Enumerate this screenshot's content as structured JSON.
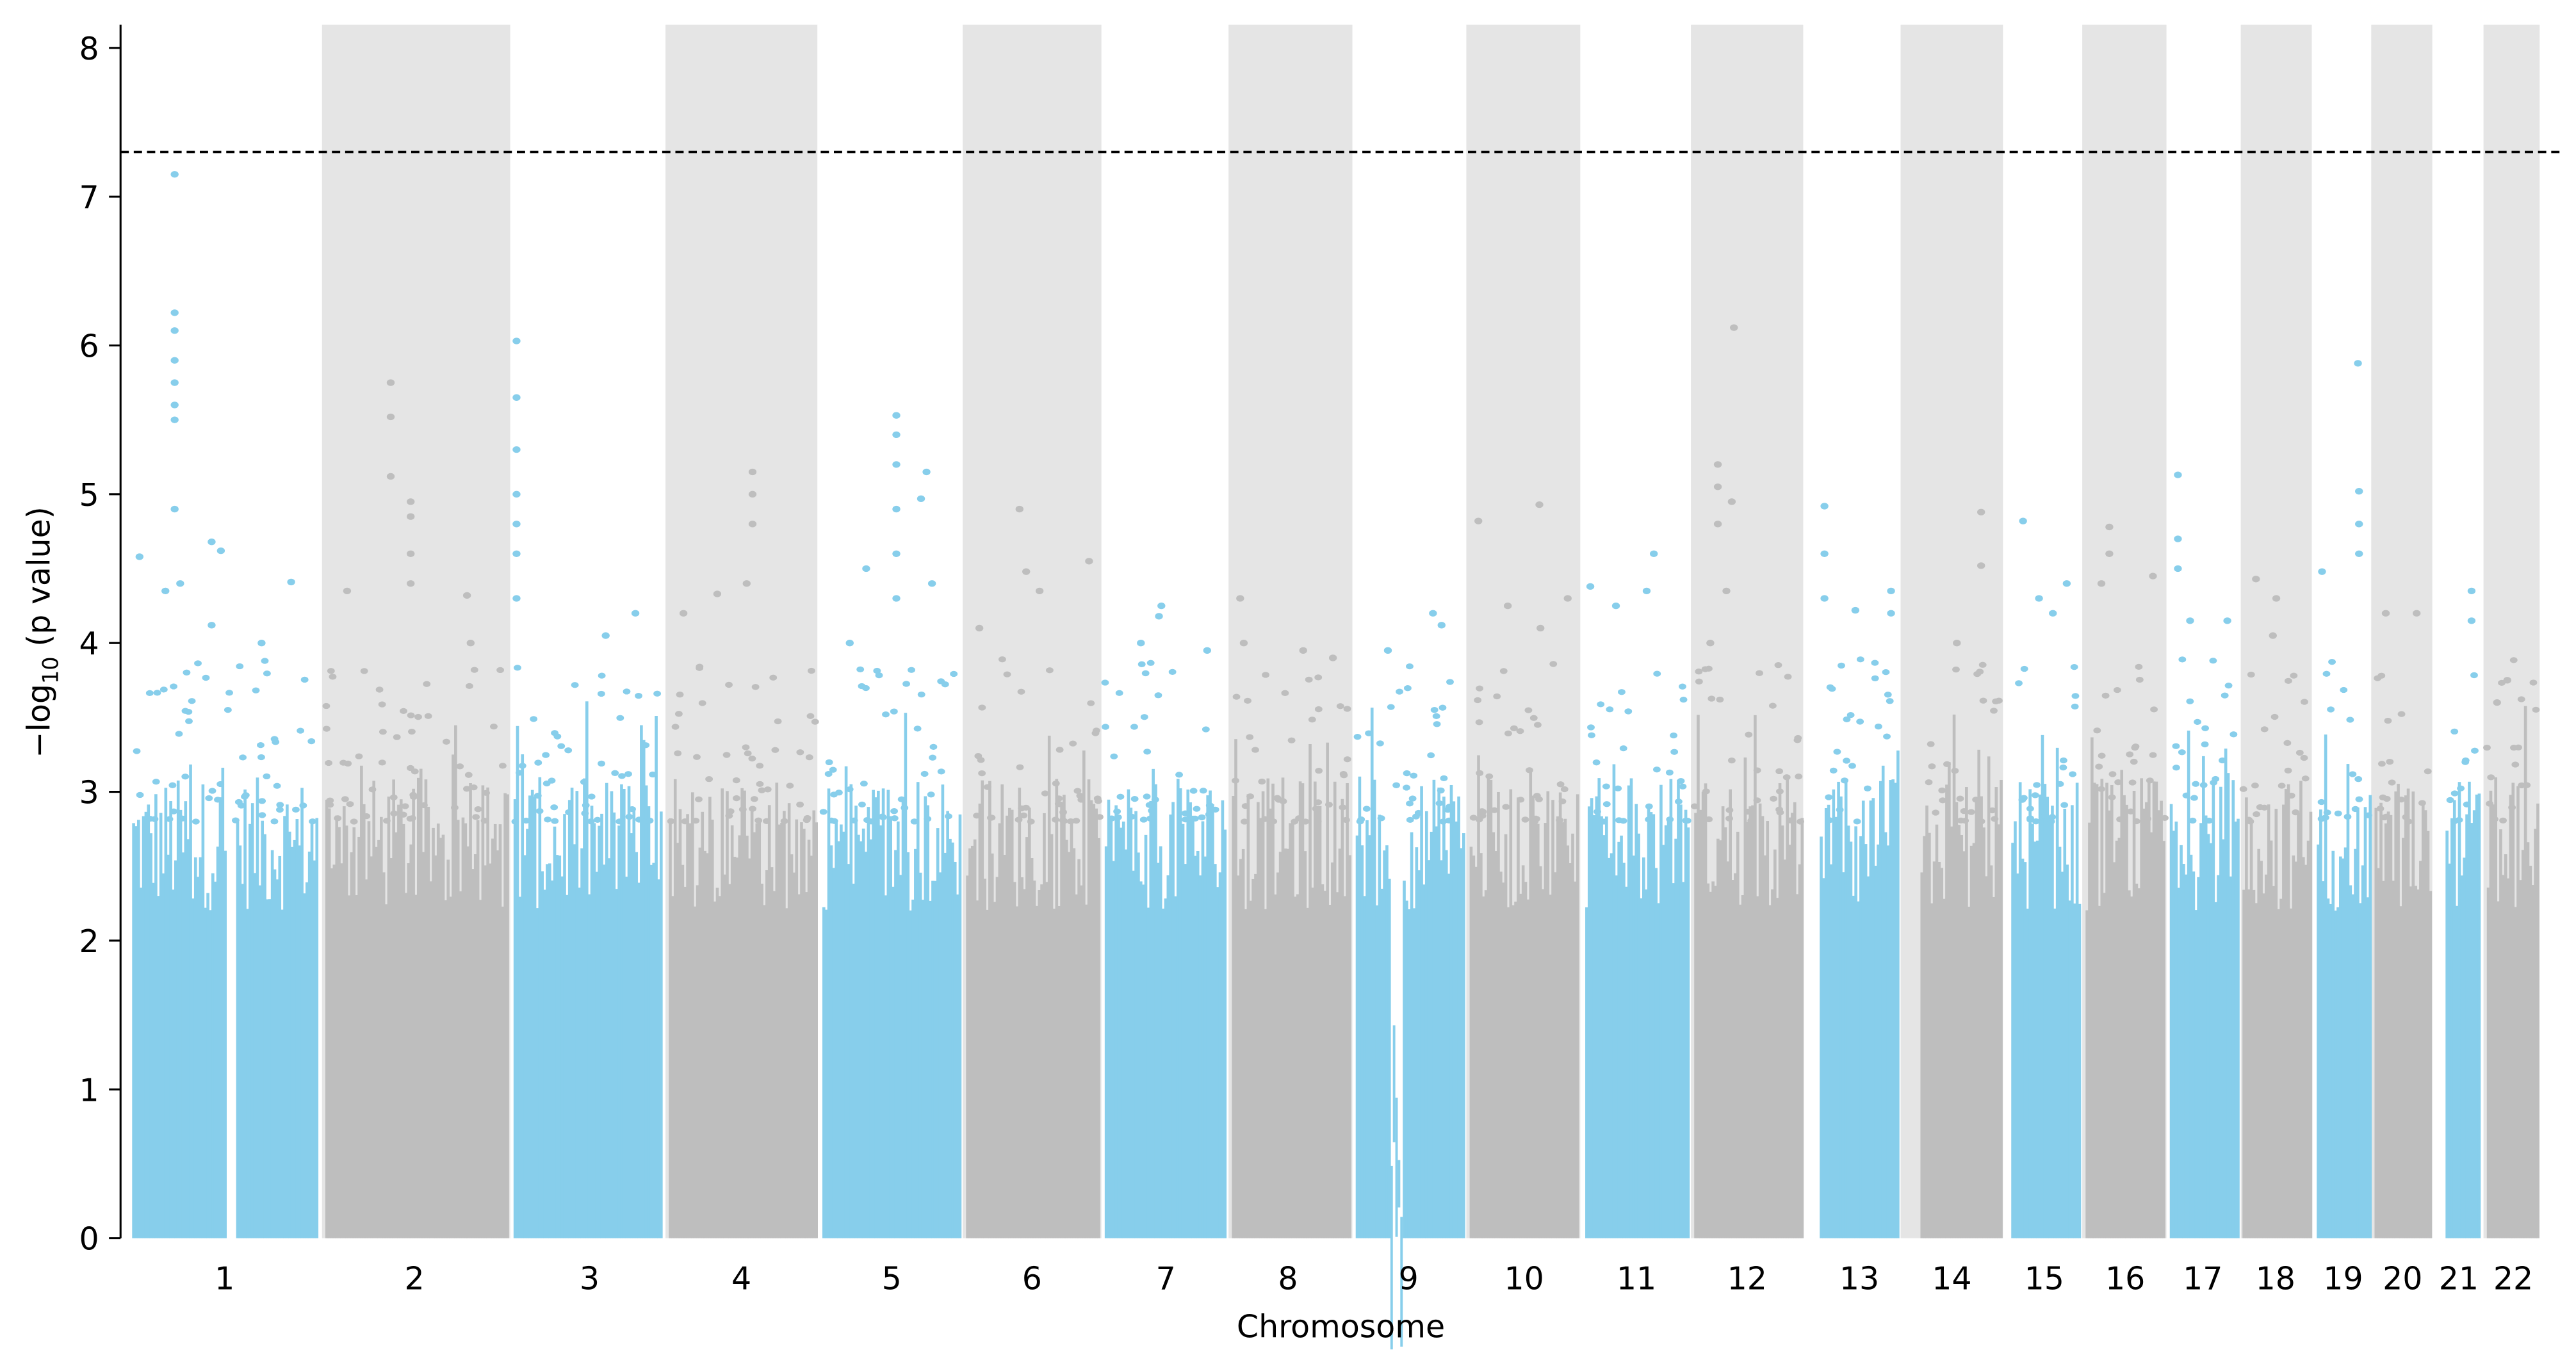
{
  "chart_data": {
    "type": "scatter",
    "subtype": "manhattan",
    "title": "",
    "xlabel": "Chromosome",
    "ylabel_prefix": "−log",
    "ylabel_sub": "10",
    "ylabel_suffix": " (p value)",
    "ylim": [
      0,
      8.15
    ],
    "yticks": [
      "0",
      "1",
      "2",
      "3",
      "4",
      "5",
      "6",
      "7",
      "8"
    ],
    "significance_threshold": 7.3,
    "colors": {
      "odd": "#87CEEB",
      "even": "#BEBEBE",
      "band": "#E5E5E5",
      "threshold": "#000000"
    },
    "chromosomes": [
      {
        "label": "1",
        "peaks": [
          [
            0.23,
            7.15
          ],
          [
            0.23,
            6.22
          ],
          [
            0.23,
            6.1
          ],
          [
            0.23,
            5.9
          ],
          [
            0.23,
            5.75
          ],
          [
            0.23,
            5.6
          ],
          [
            0.23,
            5.5
          ],
          [
            0.23,
            4.9
          ],
          [
            0.43,
            4.68
          ],
          [
            0.48,
            4.62
          ],
          [
            0.04,
            4.58
          ],
          [
            0.26,
            4.4
          ],
          [
            0.86,
            4.41
          ],
          [
            0.18,
            4.35
          ],
          [
            0.43,
            4.12
          ],
          [
            0.7,
            4.0
          ]
        ]
      },
      {
        "label": "2",
        "peaks": [
          [
            0.36,
            5.75
          ],
          [
            0.36,
            5.52
          ],
          [
            0.36,
            5.12
          ],
          [
            0.47,
            4.95
          ],
          [
            0.47,
            4.85
          ],
          [
            0.47,
            4.6
          ],
          [
            0.47,
            4.4
          ],
          [
            0.12,
            4.35
          ],
          [
            0.78,
            4.32
          ],
          [
            0.8,
            4.0
          ]
        ]
      },
      {
        "label": "3",
        "peaks": [
          [
            0.02,
            6.03
          ],
          [
            0.02,
            5.65
          ],
          [
            0.02,
            5.3
          ],
          [
            0.02,
            5.0
          ],
          [
            0.02,
            4.8
          ],
          [
            0.02,
            4.6
          ],
          [
            0.02,
            4.3
          ],
          [
            0.62,
            4.05
          ],
          [
            0.82,
            4.2
          ]
        ]
      },
      {
        "label": "4",
        "peaks": [
          [
            0.57,
            5.15
          ],
          [
            0.57,
            5.0
          ],
          [
            0.57,
            4.8
          ],
          [
            0.53,
            4.4
          ],
          [
            0.33,
            4.33
          ],
          [
            0.1,
            4.2
          ]
        ]
      },
      {
        "label": "5",
        "peaks": [
          [
            0.54,
            5.53
          ],
          [
            0.54,
            5.4
          ],
          [
            0.54,
            5.2
          ],
          [
            0.54,
            4.9
          ],
          [
            0.54,
            4.6
          ],
          [
            0.54,
            4.3
          ],
          [
            0.76,
            5.15
          ],
          [
            0.72,
            4.97
          ],
          [
            0.32,
            4.5
          ],
          [
            0.8,
            4.4
          ],
          [
            0.2,
            4.0
          ]
        ]
      },
      {
        "label": "6",
        "peaks": [
          [
            0.4,
            4.9
          ],
          [
            0.92,
            4.55
          ],
          [
            0.45,
            4.48
          ],
          [
            0.55,
            4.35
          ],
          [
            0.1,
            4.1
          ]
        ]
      },
      {
        "label": "7",
        "peaks": [
          [
            0.47,
            4.25
          ],
          [
            0.3,
            4.0
          ],
          [
            0.85,
            3.95
          ],
          [
            0.45,
            4.18
          ]
        ]
      },
      {
        "label": "8",
        "peaks": [
          [
            0.07,
            4.3
          ],
          [
            0.1,
            4.0
          ],
          [
            0.6,
            3.95
          ],
          [
            0.85,
            3.9
          ]
        ]
      },
      {
        "label": "9",
        "peaks": [
          [
            0.72,
            4.2
          ],
          [
            0.8,
            4.12
          ],
          [
            0.3,
            3.95
          ]
        ]
      },
      {
        "label": "10",
        "peaks": [
          [
            0.64,
            4.93
          ],
          [
            0.08,
            4.82
          ],
          [
            0.35,
            4.25
          ],
          [
            0.65,
            4.1
          ],
          [
            0.9,
            4.3
          ]
        ]
      },
      {
        "label": "11",
        "peaks": [
          [
            0.67,
            4.6
          ],
          [
            0.05,
            4.38
          ],
          [
            0.6,
            4.35
          ],
          [
            0.3,
            4.25
          ]
        ]
      },
      {
        "label": "12",
        "peaks": [
          [
            0.37,
            6.12
          ],
          [
            0.22,
            5.2
          ],
          [
            0.22,
            5.05
          ],
          [
            0.22,
            4.8
          ],
          [
            0.35,
            4.95
          ],
          [
            0.3,
            4.35
          ],
          [
            0.15,
            4.0
          ]
        ]
      },
      {
        "label": "13",
        "peaks": [
          [
            0.06,
            4.92
          ],
          [
            0.06,
            4.6
          ],
          [
            0.06,
            4.3
          ],
          [
            0.9,
            4.35
          ],
          [
            0.9,
            4.2
          ],
          [
            0.45,
            4.22
          ]
        ]
      },
      {
        "label": "14",
        "peaks": [
          [
            0.75,
            4.88
          ],
          [
            0.75,
            4.52
          ],
          [
            0.45,
            4.0
          ]
        ]
      },
      {
        "label": "15",
        "peaks": [
          [
            0.17,
            4.82
          ],
          [
            0.4,
            4.3
          ],
          [
            0.6,
            4.2
          ],
          [
            0.8,
            4.4
          ]
        ]
      },
      {
        "label": "16",
        "peaks": [
          [
            0.3,
            4.78
          ],
          [
            0.3,
            4.6
          ],
          [
            0.2,
            4.4
          ],
          [
            0.85,
            4.45
          ]
        ]
      },
      {
        "label": "17",
        "peaks": [
          [
            0.12,
            5.13
          ],
          [
            0.12,
            4.7
          ],
          [
            0.12,
            4.5
          ],
          [
            0.3,
            4.15
          ],
          [
            0.85,
            4.15
          ]
        ]
      },
      {
        "label": "18",
        "peaks": [
          [
            0.2,
            4.43
          ],
          [
            0.5,
            4.3
          ],
          [
            0.45,
            4.05
          ]
        ]
      },
      {
        "label": "19",
        "peaks": [
          [
            0.78,
            5.88
          ],
          [
            0.8,
            5.02
          ],
          [
            0.8,
            4.8
          ],
          [
            0.8,
            4.6
          ],
          [
            0.1,
            4.48
          ]
        ]
      },
      {
        "label": "20",
        "peaks": [
          [
            0.2,
            4.2
          ],
          [
            0.75,
            4.2
          ]
        ]
      },
      {
        "label": "21",
        "peaks": [
          [
            0.75,
            4.35
          ],
          [
            0.75,
            4.15
          ]
        ]
      },
      {
        "label": "22",
        "peaks": [
          [
            0.4,
            3.75
          ],
          [
            0.2,
            3.6
          ]
        ]
      }
    ]
  }
}
